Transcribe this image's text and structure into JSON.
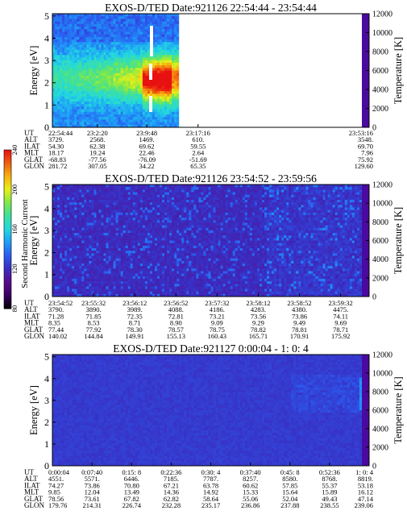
{
  "colorbar": {
    "label": "Second Harmonic Current",
    "ticks": [
      "80",
      "120",
      "160",
      "200",
      "240"
    ],
    "colors": [
      "#000000",
      "#3a0060",
      "#5a0a8a",
      "#3a2cc0",
      "#2a5cf0",
      "#1e9cf8",
      "#22d8e0",
      "#3ce0a0",
      "#7ee848",
      "#e8f018",
      "#f8b010",
      "#f06010",
      "#e81010"
    ]
  },
  "panels": [
    {
      "title": "EXOS-D/TED   Date:921126  22:54:44 - 23:54:44",
      "ylabel": "Energy [eV]",
      "y2label": "Temperature [K]",
      "yticks": [
        "0",
        "1",
        "2",
        "3",
        "4",
        "5"
      ],
      "y2ticks": [
        "0",
        "2000",
        "4000",
        "6000",
        "8000",
        "10000",
        "12000"
      ],
      "data_fraction": 0.4,
      "col_positions": [
        0,
        0.142,
        0.298,
        0.46,
        1.0
      ],
      "rows": [
        {
          "label": "UT",
          "values": [
            "22:54:44",
            "23:2:20",
            "23:9:48",
            "23:17:16",
            "23:53:16"
          ]
        },
        {
          "label": "ALT",
          "values": [
            "3729.",
            "2568.",
            "1469.",
            "610.",
            "3548."
          ]
        },
        {
          "label": "ILAT",
          "values": [
            "54.30",
            "62.38",
            "69.62",
            "59.55",
            "69.70"
          ]
        },
        {
          "label": "MLT",
          "values": [
            "18.17",
            "19.24",
            "22.46",
            "2.64",
            "7.96"
          ]
        },
        {
          "label": "GLAT",
          "values": [
            "-68.83",
            "-77.56",
            "-76.09",
            "-51.69",
            "75.92"
          ]
        },
        {
          "label": "GLON",
          "values": [
            "281.72",
            "307.05",
            "34.22",
            "65.35",
            "129.60"
          ]
        }
      ]
    },
    {
      "title": "EXOS-D/TED   Date:921126  23:54:52 - 23:59:56",
      "ylabel": "Energy [eV]",
      "y2label": "Temperature [K]",
      "yticks": [
        "0",
        "1",
        "2",
        "3",
        "4",
        "5"
      ],
      "y2ticks": [
        "0",
        "2000",
        "4000",
        "6000",
        "8000",
        "10000",
        "12000"
      ],
      "data_fraction": 1.0,
      "col_positions": [
        0,
        0.13,
        0.26,
        0.39,
        0.52,
        0.65,
        0.78,
        0.91
      ],
      "rows": [
        {
          "label": "UT",
          "values": [
            "23:54:52",
            "23:55:32",
            "23:56:12",
            "23:56:52",
            "23:57:32",
            "23:58:12",
            "23:58:52",
            "23:59:32"
          ]
        },
        {
          "label": "ALT",
          "values": [
            "3790.",
            "3890.",
            "3989.",
            "4088.",
            "4186.",
            "4283.",
            "4380.",
            "4475."
          ]
        },
        {
          "label": "ILAT",
          "values": [
            "71.28",
            "71.85",
            "72.35",
            "72.81",
            "73.21",
            "73.56",
            "73.86",
            "74.11"
          ]
        },
        {
          "label": "MLT",
          "values": [
            "8.35",
            "8.53",
            "8.71",
            "8.90",
            "9.09",
            "9.29",
            "9.49",
            "9.69"
          ]
        },
        {
          "label": "GLAT",
          "values": [
            "77.44",
            "77.92",
            "78.30",
            "78.57",
            "78.75",
            "78.82",
            "78.81",
            "78.71"
          ]
        },
        {
          "label": "GLON",
          "values": [
            "140.02",
            "144.84",
            "149.91",
            "155.13",
            "160.43",
            "165.71",
            "170.91",
            "175.92"
          ]
        }
      ]
    },
    {
      "title": "EXOS-D/TED   Date:921127  0:00:04 - 1: 0: 4",
      "ylabel": "Energy [eV]",
      "y2label": "Temperature [K]",
      "yticks": [
        "0",
        "1",
        "2",
        "3",
        "4",
        "5"
      ],
      "y2ticks": [
        "0",
        "2000",
        "4000",
        "6000",
        "8000",
        "10000",
        "12000"
      ],
      "data_fraction": 1.0,
      "col_positions": [
        0,
        0.125,
        0.25,
        0.375,
        0.5,
        0.625,
        0.75,
        0.875,
        1.0
      ],
      "rows": [
        {
          "label": "UT",
          "values": [
            "0:00:04",
            "0:07:40",
            "0:15: 8",
            "0:22:36",
            "0:30: 4",
            "0:37:40",
            "0:45: 8",
            "0:52:36",
            "1: 0: 4"
          ]
        },
        {
          "label": "ALT",
          "values": [
            "4551.",
            "5571.",
            "6446.",
            "7185.",
            "7787.",
            "8257.",
            "8580.",
            "8768.",
            "8819."
          ]
        },
        {
          "label": "ILAT",
          "values": [
            "74.27",
            "73.86",
            "70.80",
            "67.21",
            "63.78",
            "60.62",
            "57.85",
            "55.37",
            "53.18"
          ]
        },
        {
          "label": "MLT",
          "values": [
            "9.85",
            "12.04",
            "13.49",
            "14.36",
            "14.92",
            "15.33",
            "15.64",
            "15.89",
            "16.12"
          ]
        },
        {
          "label": "GLAT",
          "values": [
            "78.56",
            "73.61",
            "67.82",
            "62.82",
            "58.64",
            "55.06",
            "52.04",
            "49.43",
            "47.14"
          ]
        },
        {
          "label": "GLON",
          "values": [
            "179.76",
            "214.31",
            "226.74",
            "232.28",
            "235.17",
            "236.86",
            "237.88",
            "238.55",
            "239.06"
          ]
        }
      ]
    }
  ],
  "chart_data": [
    {
      "type": "heatmap",
      "title": "EXOS-D/TED   Date:921126  22:54:44 - 23:54:44",
      "xlabel": "UT",
      "ylabel": "Energy [eV]",
      "y2label": "Temperature [K]",
      "ylim": [
        0,
        5
      ],
      "y2lim": [
        0,
        12000
      ],
      "x_ticks": [
        "22:54:44",
        "23:2:20",
        "23:9:48",
        "23:17:16",
        "23:53:16"
      ],
      "note": "data present only from 22:54:44 to about 23:18; peak intensity near 1.5-3 eV around 23:10-23:15"
    },
    {
      "type": "heatmap",
      "title": "EXOS-D/TED   Date:921126  23:54:52 - 23:59:56",
      "xlabel": "UT",
      "ylabel": "Energy [eV]",
      "y2label": "Temperature [K]",
      "ylim": [
        0,
        5
      ],
      "y2lim": [
        0,
        12000
      ],
      "x_ticks": [
        "23:54:52",
        "23:55:32",
        "23:56:12",
        "23:56:52",
        "23:57:32",
        "23:58:12",
        "23:58:52",
        "23:59:32"
      ]
    },
    {
      "type": "heatmap",
      "title": "EXOS-D/TED   Date:921127  0:00:04 - 1: 0: 4",
      "xlabel": "UT",
      "ylabel": "Energy [eV]",
      "y2label": "Temperature [K]",
      "ylim": [
        0,
        5
      ],
      "y2lim": [
        0,
        12000
      ],
      "x_ticks": [
        "0:00:04",
        "0:07:40",
        "0:15: 8",
        "0:22:36",
        "0:30: 4",
        "0:37:40",
        "0:45: 8",
        "0:52:36",
        "1: 0: 4"
      ]
    }
  ]
}
